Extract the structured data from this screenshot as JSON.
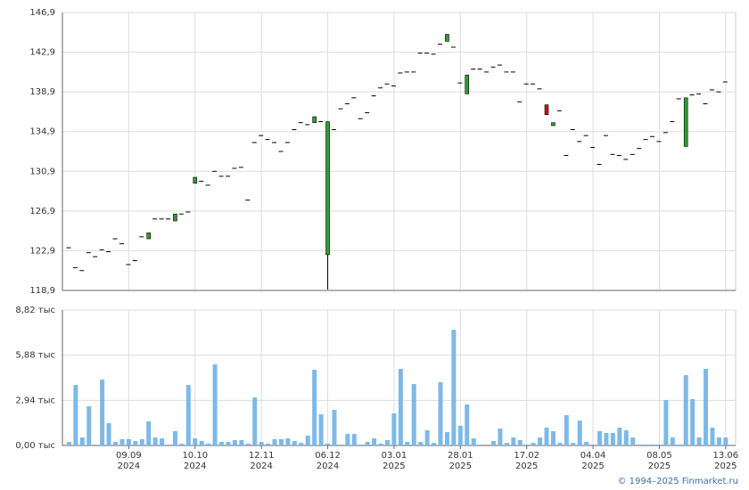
{
  "chart_data": [
    {
      "type": "candlestick",
      "open": [
        123.2,
        121.2,
        120.9,
        122.7,
        122.3,
        123.0,
        122.8,
        124.1,
        123.6,
        121.5,
        121.9,
        124.3,
        124.1,
        126.1,
        126.1,
        126.1,
        125.9,
        126.6,
        126.8,
        129.7,
        129.9,
        129.5,
        130.9,
        130.4,
        130.4,
        131.2,
        131.3,
        128.0,
        133.8,
        134.5,
        134.1,
        133.8,
        132.9,
        133.8,
        135.1,
        135.8,
        135.6,
        135.8,
        135.9,
        122.5,
        135.1,
        137.2,
        137.7,
        138.3,
        136.2,
        136.8,
        138.5,
        139.3,
        139.7,
        139.5,
        140.8,
        140.9,
        140.9,
        142.8,
        142.8,
        142.7,
        143.7,
        144.0,
        143.4,
        139.8,
        138.7,
        141.2,
        141.2,
        140.9,
        141.4,
        141.6,
        140.9,
        140.9,
        137.9,
        139.7,
        139.7,
        139.2,
        137.6,
        135.5,
        137.0,
        132.5,
        135.1,
        133.9,
        134.5,
        133.3,
        131.6,
        134.5,
        132.6,
        132.5,
        132.1,
        132.6,
        133.2,
        134.1,
        134.4,
        133.9,
        134.8,
        135.9,
        138.2,
        133.4,
        138.6,
        138.7,
        137.7,
        139.1,
        138.9,
        139.9
      ],
      "high": [
        123.2,
        121.2,
        120.9,
        122.7,
        122.3,
        123.0,
        122.8,
        124.1,
        123.6,
        121.5,
        121.9,
        124.3,
        124.7,
        126.1,
        126.1,
        126.1,
        126.6,
        126.6,
        126.8,
        130.3,
        129.9,
        129.5,
        130.9,
        130.4,
        130.4,
        131.2,
        131.3,
        128.0,
        133.8,
        134.5,
        134.1,
        133.8,
        132.9,
        133.8,
        135.1,
        135.8,
        135.6,
        136.4,
        135.9,
        135.9,
        135.1,
        137.2,
        137.7,
        138.3,
        136.2,
        136.8,
        138.5,
        139.3,
        139.7,
        139.5,
        140.8,
        140.9,
        140.9,
        142.8,
        142.8,
        142.7,
        143.7,
        144.7,
        143.4,
        139.8,
        140.6,
        141.2,
        141.2,
        140.9,
        141.4,
        141.6,
        140.9,
        140.9,
        137.9,
        139.7,
        139.7,
        139.2,
        137.6,
        135.8,
        137.0,
        132.5,
        135.1,
        133.9,
        134.5,
        133.3,
        131.6,
        134.5,
        132.6,
        132.5,
        132.1,
        132.6,
        133.2,
        134.1,
        134.4,
        133.9,
        134.8,
        135.9,
        138.2,
        138.3,
        138.6,
        138.7,
        137.7,
        139.1,
        138.9,
        139.9
      ],
      "low": [
        123.2,
        121.2,
        120.9,
        122.7,
        122.3,
        123.0,
        122.8,
        124.1,
        123.6,
        121.5,
        121.9,
        124.3,
        124.1,
        126.1,
        126.1,
        126.1,
        125.9,
        126.6,
        126.8,
        129.7,
        129.9,
        129.5,
        130.9,
        130.4,
        130.4,
        131.2,
        131.3,
        128.0,
        133.8,
        134.5,
        134.1,
        133.8,
        132.9,
        133.8,
        135.1,
        135.8,
        135.6,
        135.8,
        135.9,
        119.0,
        135.1,
        137.2,
        137.7,
        138.3,
        136.2,
        136.8,
        138.5,
        139.3,
        139.7,
        139.5,
        140.8,
        140.9,
        140.9,
        142.8,
        142.8,
        142.7,
        143.7,
        144.0,
        143.4,
        139.8,
        138.7,
        141.2,
        141.2,
        140.9,
        141.4,
        141.6,
        140.9,
        140.9,
        137.9,
        139.7,
        139.7,
        139.2,
        136.6,
        135.5,
        137.0,
        132.5,
        135.1,
        133.9,
        134.5,
        133.3,
        131.6,
        134.5,
        132.6,
        132.5,
        132.1,
        132.6,
        133.2,
        134.1,
        134.4,
        133.9,
        134.8,
        135.9,
        138.2,
        133.4,
        138.6,
        138.7,
        137.7,
        139.1,
        138.9,
        139.9
      ],
      "close": [
        123.2,
        121.2,
        120.9,
        122.7,
        122.3,
        123.0,
        122.8,
        124.1,
        123.6,
        121.5,
        121.9,
        124.3,
        124.7,
        126.1,
        126.1,
        126.1,
        126.6,
        126.6,
        126.8,
        130.3,
        129.9,
        129.5,
        130.9,
        130.4,
        130.4,
        131.2,
        131.3,
        128.0,
        133.8,
        134.5,
        134.1,
        133.8,
        132.9,
        133.8,
        135.1,
        135.8,
        135.6,
        136.4,
        135.9,
        135.9,
        135.1,
        137.2,
        137.7,
        138.3,
        136.2,
        136.8,
        138.5,
        139.3,
        139.7,
        139.5,
        140.8,
        140.9,
        140.9,
        142.8,
        142.8,
        142.7,
        143.7,
        144.7,
        143.4,
        139.8,
        140.6,
        141.2,
        141.2,
        140.9,
        141.4,
        141.6,
        140.9,
        140.9,
        137.9,
        139.7,
        139.7,
        139.2,
        136.6,
        135.8,
        137.0,
        132.5,
        135.1,
        133.9,
        134.5,
        133.3,
        131.6,
        134.5,
        132.6,
        132.5,
        132.1,
        132.6,
        133.2,
        134.1,
        134.4,
        133.9,
        134.8,
        135.9,
        138.2,
        138.3,
        138.6,
        138.7,
        137.7,
        139.1,
        138.9,
        139.9
      ],
      "up_color": "#2e9e2e",
      "down_color": "#cc1111",
      "xlim": [
        -1,
        100.5
      ],
      "ylim": [
        118.9,
        146.9
      ],
      "yticks": [
        {
          "value": 118.9,
          "label": "118,9"
        },
        {
          "value": 122.9,
          "label": "122,9"
        },
        {
          "value": 126.9,
          "label": "126,9"
        },
        {
          "value": 130.9,
          "label": "130,9"
        },
        {
          "value": 134.9,
          "label": "134,9"
        },
        {
          "value": 138.9,
          "label": "138,9"
        },
        {
          "value": 142.9,
          "label": "142,9"
        },
        {
          "value": 146.9,
          "label": "146,9"
        }
      ],
      "grid": true
    },
    {
      "type": "bar",
      "values": [
        0.23,
        3.94,
        0.52,
        2.55,
        0.06,
        4.29,
        1.45,
        0.23,
        0.41,
        0.41,
        0.29,
        0.41,
        1.57,
        0.52,
        0.46,
        0.06,
        0.93,
        0.12,
        3.94,
        0.46,
        0.29,
        0.12,
        5.28,
        0.23,
        0.23,
        0.35,
        0.35,
        0.12,
        3.13,
        0.23,
        0.12,
        0.41,
        0.41,
        0.46,
        0.29,
        0.17,
        0.64,
        4.93,
        2.03,
        0.12,
        2.32,
        0.06,
        0.75,
        0.75,
        0.06,
        0.23,
        0.46,
        0.12,
        0.35,
        2.09,
        4.99,
        0.23,
        4.0,
        0.23,
        0.99,
        0.17,
        4.12,
        0.87,
        7.54,
        1.28,
        2.67,
        0.46,
        0.06,
        0.06,
        0.29,
        1.1,
        0.17,
        0.52,
        0.35,
        0.06,
        0.17,
        0.52,
        1.16,
        0.93,
        0.17,
        1.97,
        0.17,
        1.62,
        0.23,
        0.06,
        0.93,
        0.81,
        0.81,
        1.16,
        0.99,
        0.52,
        0.06,
        0.06,
        0.06,
        0.06,
        2.96,
        0.52,
        0.06,
        4.58,
        3.02,
        0.52,
        4.99,
        1.16,
        0.52,
        0.52
      ],
      "color": "#7db9e8",
      "xlim": [
        -1,
        100.5
      ],
      "ylim": [
        0,
        8.82
      ],
      "yticks": [
        {
          "value": 0,
          "label": "0,00 тыс"
        },
        {
          "value": 2.94,
          "label": "2,94 тыс"
        },
        {
          "value": 5.88,
          "label": "5,88 тыс"
        },
        {
          "value": 8.82,
          "label": "8,82 тыс"
        }
      ],
      "xticks": [
        {
          "value": 9,
          "label": "09.09\n2024"
        },
        {
          "value": 19,
          "label": "10.10\n2024"
        },
        {
          "value": 29,
          "label": "12.11\n2024"
        },
        {
          "value": 39,
          "label": "06.12\n2024"
        },
        {
          "value": 49,
          "label": "03.01\n2025"
        },
        {
          "value": 59,
          "label": "28.01\n2025"
        },
        {
          "value": 69,
          "label": "17.02\n2025"
        },
        {
          "value": 79,
          "label": "04.04\n2025"
        },
        {
          "value": 89,
          "label": "08.05\n2025"
        },
        {
          "value": 99,
          "label": "13.06\n2025"
        }
      ],
      "grid": true
    }
  ],
  "footer": "© 1994–2025 Finmarket.ru"
}
